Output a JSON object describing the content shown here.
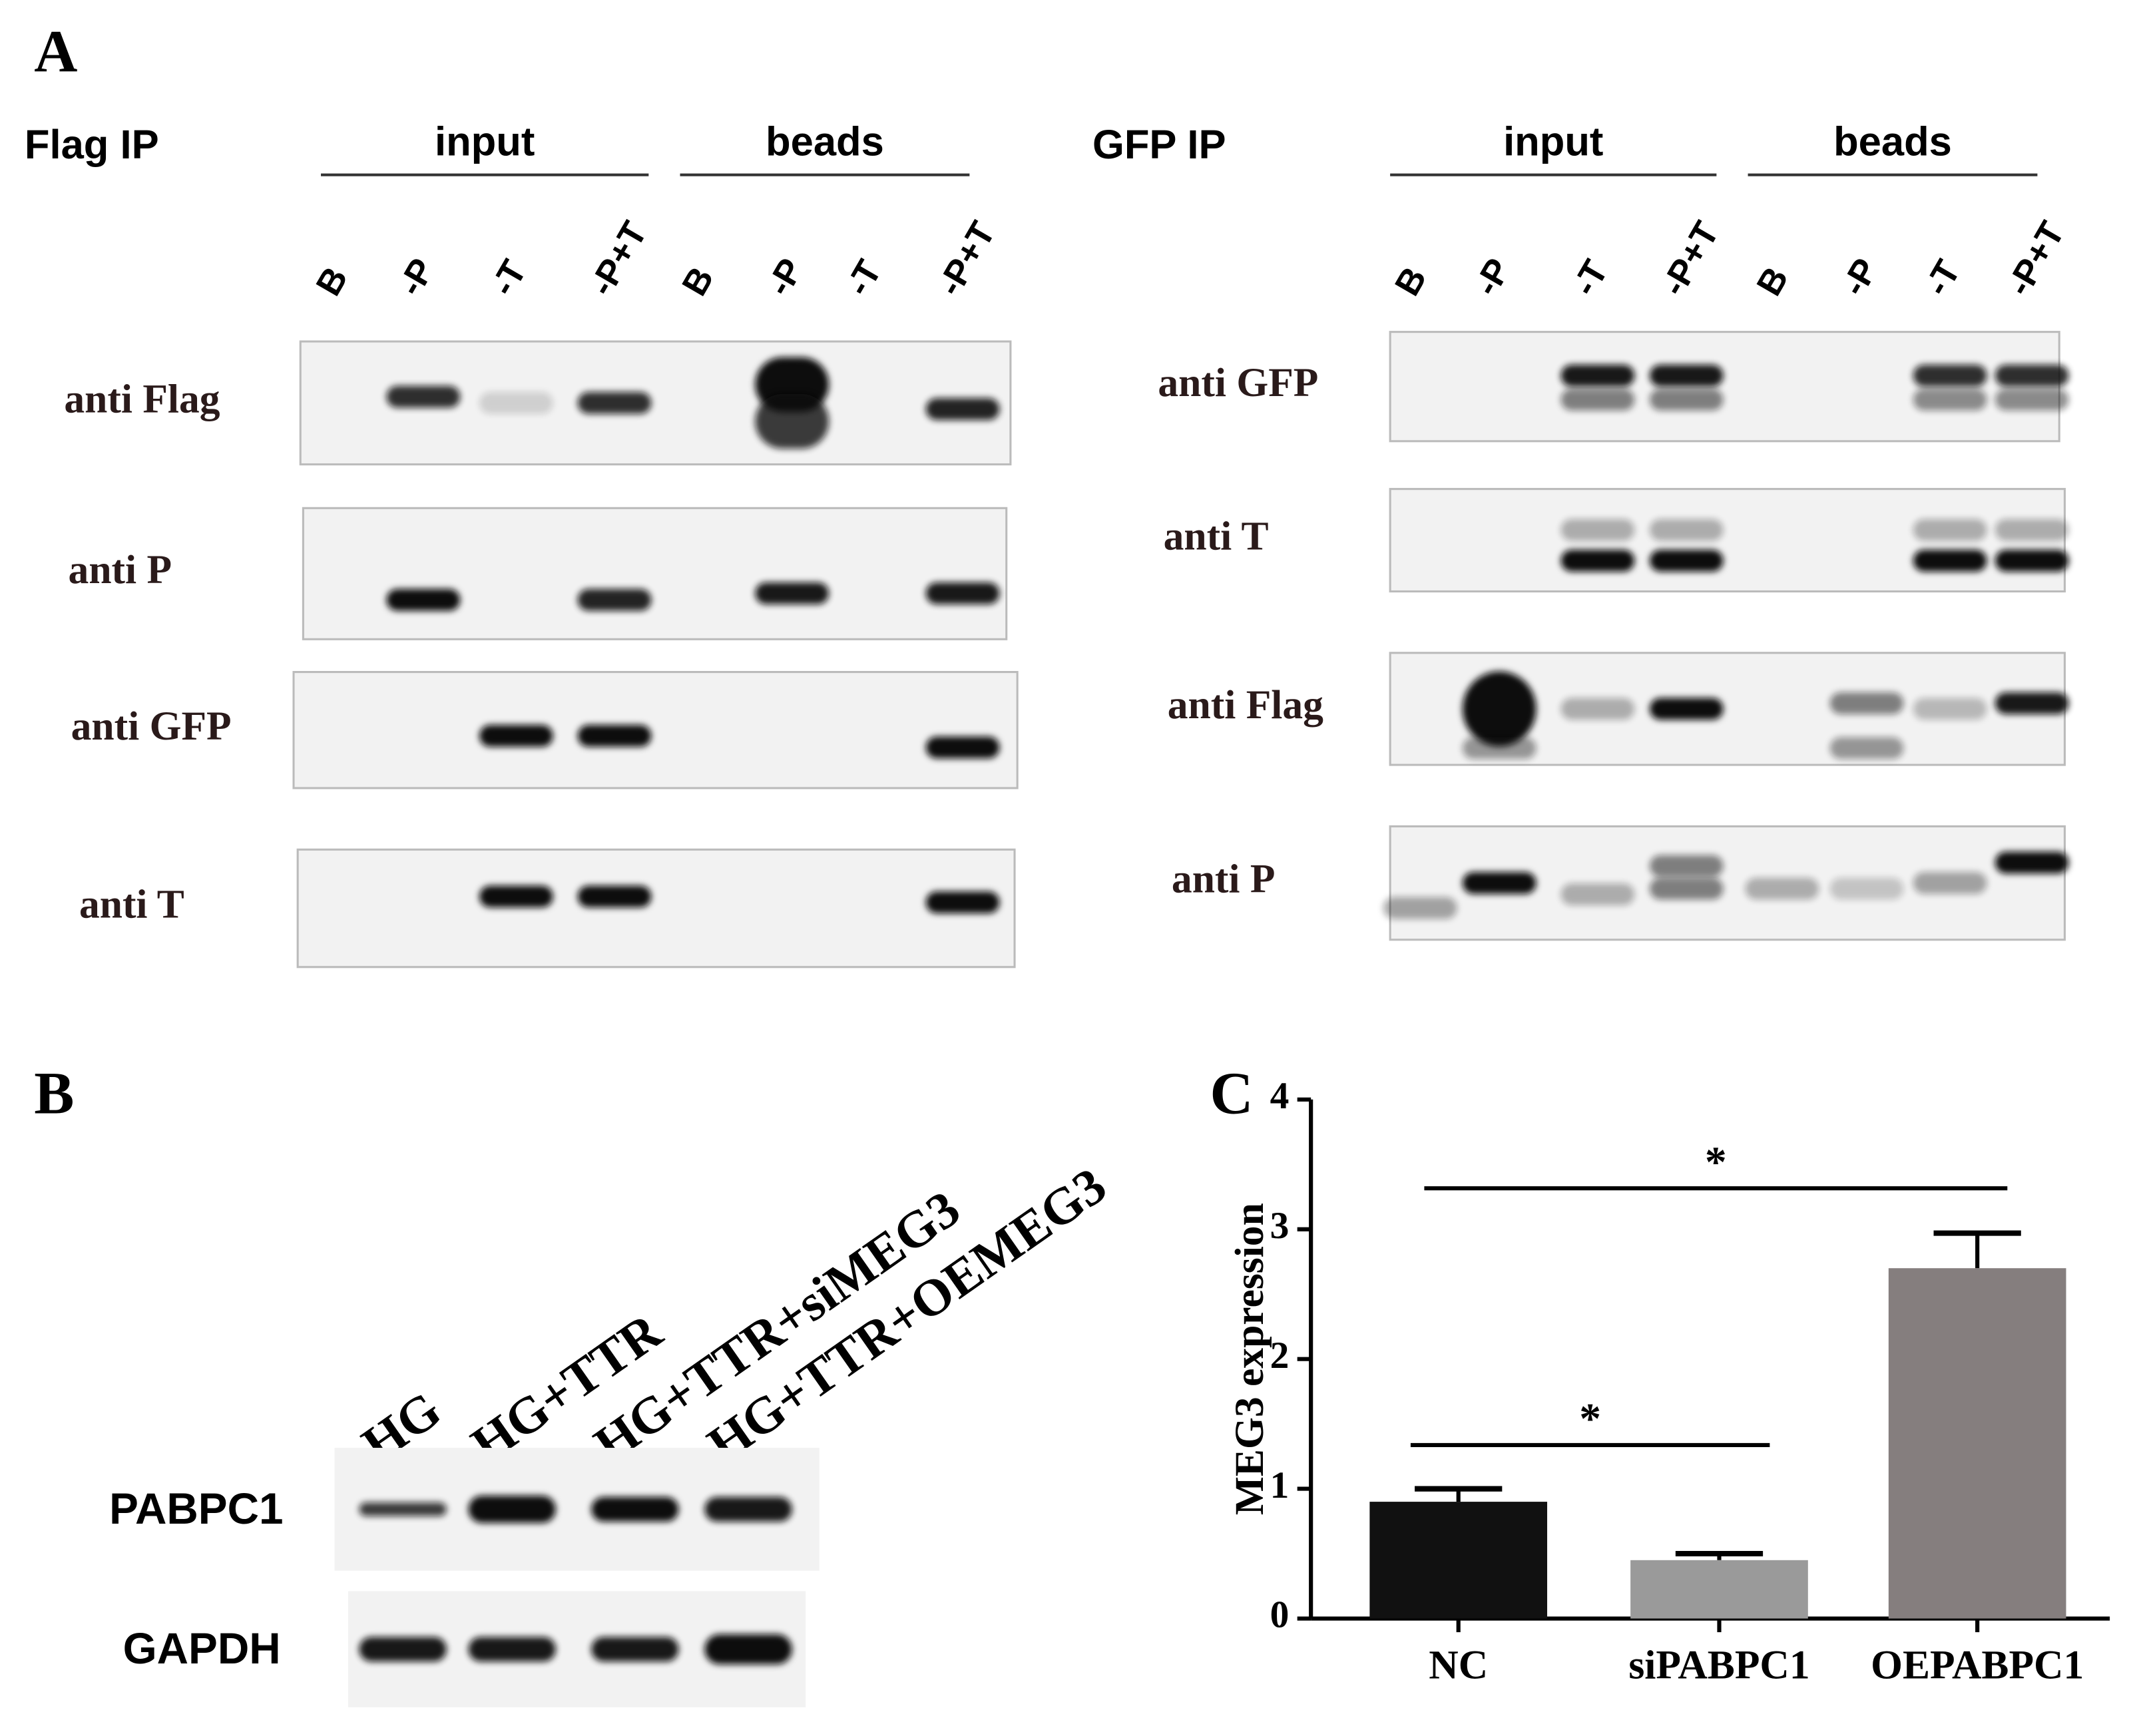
{
  "panel_a": {
    "label": "A",
    "flag_ip": {
      "title": "Flag IP",
      "groups": [
        "input",
        "beads"
      ],
      "lanes": [
        "B",
        "-P",
        "-T",
        "-P+T",
        "B",
        "-P",
        "-T",
        "-P+T"
      ],
      "rows": [
        "anti Flag",
        "anti P",
        "anti GFP",
        "anti T"
      ]
    },
    "gfp_ip": {
      "title": "GFP IP",
      "groups": [
        "input",
        "beads"
      ],
      "lanes": [
        "B",
        "-P",
        "-T",
        "-P+T",
        "B",
        "-P",
        "-T",
        "-P+T"
      ],
      "rows": [
        "anti GFP",
        "anti T",
        "anti Flag",
        "anti P"
      ]
    }
  },
  "panel_b": {
    "label": "B",
    "lanes": [
      "HG",
      "HG+TTR",
      "HG+TTR+siMEG3",
      "HG+TTR+OEMEG3"
    ],
    "rows": [
      "PABPC1",
      "GAPDH"
    ]
  },
  "chart_data": {
    "type": "bar",
    "label": "C",
    "y_label": "MEG3 expression",
    "categories": [
      "NC",
      "siPABPC1",
      "OEPABPC1"
    ],
    "values": [
      0.9,
      0.45,
      2.7
    ],
    "errors": [
      0.1,
      0.05,
      0.27
    ],
    "colors": [
      "#111111",
      "#9a9a9a",
      "#857e7e"
    ],
    "ylim": [
      0,
      4
    ],
    "yticks": [
      0,
      1,
      2,
      3,
      4
    ],
    "annotations": [
      "*",
      "*"
    ]
  }
}
